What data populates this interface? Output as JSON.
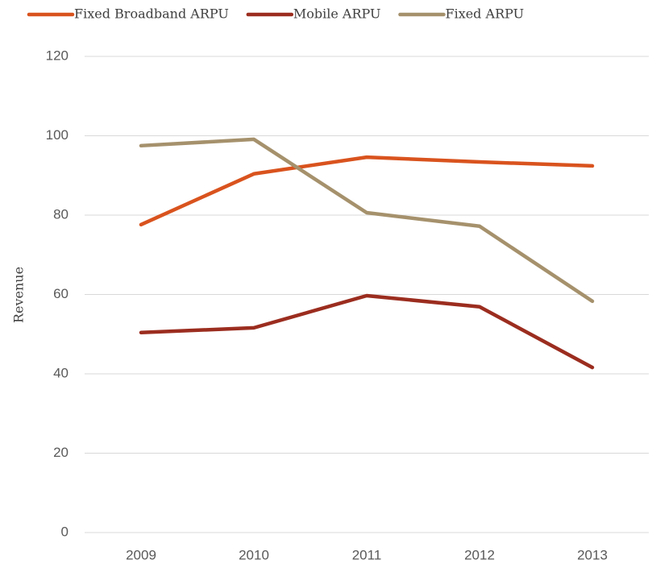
{
  "chart_data": {
    "type": "line",
    "y_label": "Revenue",
    "categories": [
      "2009",
      "2010",
      "2011",
      "2012",
      "2013"
    ],
    "series": [
      {
        "name": "Fixed Broadband ARPU",
        "color": "#d9531e",
        "values": [
          77.6,
          90.4,
          94.6,
          93.4,
          92.4
        ]
      },
      {
        "name": "Mobile ARPU",
        "color": "#9b2d1f",
        "values": [
          50.4,
          51.6,
          59.7,
          56.9,
          41.6
        ]
      },
      {
        "name": "Fixed ARPU",
        "color": "#a5916c",
        "values": [
          97.5,
          99.1,
          80.6,
          77.2,
          58.3
        ]
      }
    ],
    "ylim": [
      0,
      120
    ],
    "yticks": [
      0,
      20,
      40,
      60,
      80,
      100,
      120
    ],
    "grid": true,
    "legend": "top"
  }
}
